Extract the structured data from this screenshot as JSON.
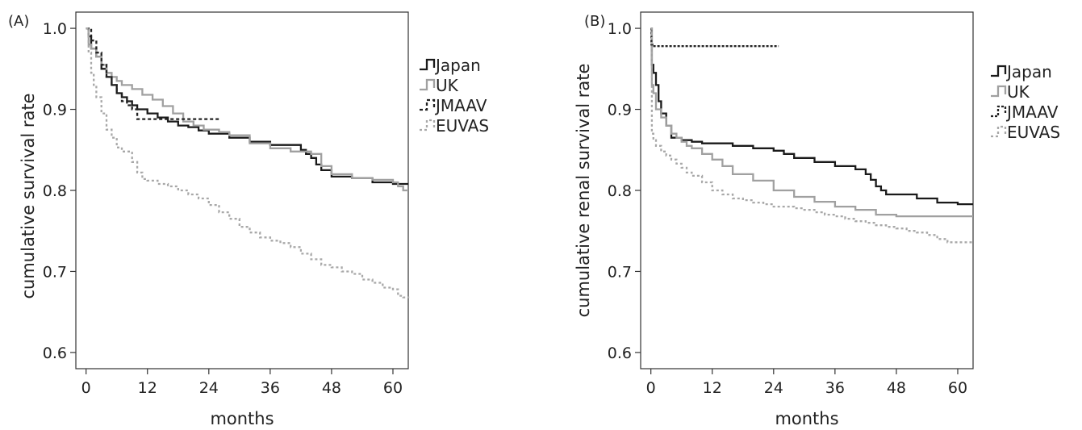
{
  "chart_data": [
    {
      "type": "line",
      "panel_label": "(A)",
      "xlabel": "months",
      "ylabel": "cumulative survival rate",
      "xlim": [
        -2,
        63
      ],
      "ylim": [
        0.58,
        1.02
      ],
      "xticks": [
        0,
        12,
        24,
        36,
        48,
        60
      ],
      "yticks": [
        0.6,
        0.7,
        0.8,
        0.9,
        1.0
      ],
      "ytick_labels": [
        "0.6",
        "0.7",
        "0.8",
        "0.9",
        "1.0"
      ],
      "grid": false,
      "legend_position": "right-outside-top",
      "series": [
        {
          "name": "Japan",
          "color": "#1a1a1a",
          "dash": "solid",
          "x": [
            0,
            0.5,
            1,
            2,
            3,
            4,
            5,
            6,
            7,
            8,
            9,
            10,
            12,
            14,
            16,
            18,
            20,
            22,
            24,
            28,
            32,
            36,
            40,
            42,
            43,
            44,
            45,
            46,
            48,
            52,
            56,
            60,
            63
          ],
          "y": [
            1.0,
            0.99,
            0.975,
            0.965,
            0.95,
            0.94,
            0.93,
            0.92,
            0.915,
            0.91,
            0.905,
            0.9,
            0.895,
            0.89,
            0.885,
            0.88,
            0.878,
            0.874,
            0.87,
            0.865,
            0.86,
            0.856,
            0.856,
            0.85,
            0.845,
            0.84,
            0.832,
            0.825,
            0.817,
            0.815,
            0.81,
            0.808,
            0.808
          ]
        },
        {
          "name": "UK",
          "color": "#a0a0a0",
          "dash": "solid",
          "x": [
            0,
            0.5,
            1,
            2,
            3,
            4,
            5,
            6,
            7,
            9,
            11,
            13,
            15,
            17,
            19,
            21,
            23,
            26,
            28,
            32,
            36,
            40,
            44,
            46,
            48,
            52,
            56,
            60,
            61,
            62,
            63
          ],
          "y": [
            1.0,
            0.98,
            0.975,
            0.965,
            0.955,
            0.945,
            0.94,
            0.935,
            0.93,
            0.925,
            0.918,
            0.912,
            0.904,
            0.895,
            0.885,
            0.88,
            0.875,
            0.872,
            0.868,
            0.858,
            0.852,
            0.848,
            0.845,
            0.83,
            0.82,
            0.815,
            0.813,
            0.81,
            0.805,
            0.8,
            0.8
          ]
        },
        {
          "name": "JMAAV",
          "color": "#222222",
          "dash": "4,3",
          "x": [
            0,
            1,
            2,
            3,
            4,
            5,
            6,
            7,
            8,
            9,
            10,
            12,
            16,
            20,
            24,
            26
          ],
          "y": [
            1.0,
            0.985,
            0.97,
            0.955,
            0.94,
            0.93,
            0.92,
            0.91,
            0.905,
            0.9,
            0.888,
            0.888,
            0.888,
            0.888,
            0.888,
            0.888
          ]
        },
        {
          "name": "EUVAS",
          "color": "#a8a8a8",
          "dash": "3,3",
          "x": [
            0,
            0.5,
            1,
            1.5,
            2,
            3,
            4,
            5,
            6,
            7,
            9,
            10,
            11,
            12,
            14,
            16,
            18,
            20,
            22,
            24,
            26,
            28,
            30,
            32,
            34,
            36,
            38,
            40,
            42,
            44,
            46,
            48,
            50,
            52,
            54,
            56,
            58,
            60,
            61,
            62,
            63
          ],
          "y": [
            1.0,
            0.97,
            0.945,
            0.93,
            0.915,
            0.895,
            0.875,
            0.865,
            0.853,
            0.848,
            0.835,
            0.822,
            0.814,
            0.812,
            0.808,
            0.805,
            0.8,
            0.795,
            0.79,
            0.782,
            0.773,
            0.765,
            0.755,
            0.748,
            0.742,
            0.738,
            0.735,
            0.73,
            0.722,
            0.715,
            0.708,
            0.705,
            0.7,
            0.697,
            0.69,
            0.686,
            0.68,
            0.678,
            0.67,
            0.668,
            0.667
          ]
        }
      ]
    },
    {
      "type": "line",
      "panel_label": "(B)",
      "xlabel": "months",
      "ylabel": "cumulative renal survival rate",
      "xlim": [
        -2,
        63
      ],
      "ylim": [
        0.58,
        1.02
      ],
      "xticks": [
        0,
        12,
        24,
        36,
        48,
        60
      ],
      "yticks": [
        0.6,
        0.7,
        0.8,
        0.9,
        1.0
      ],
      "ytick_labels": [
        "0.6",
        "0.7",
        "0.8",
        "0.9",
        "1.0"
      ],
      "grid": false,
      "legend_position": "right-outside-top",
      "series": [
        {
          "name": "Japan",
          "color": "#1a1a1a",
          "dash": "solid",
          "x": [
            0,
            0.2,
            0.5,
            1,
            1.5,
            2,
            3,
            4,
            6,
            8,
            10,
            12,
            16,
            20,
            24,
            26,
            28,
            32,
            36,
            40,
            42,
            43,
            44,
            45,
            46,
            48,
            52,
            56,
            60,
            63
          ],
          "y": [
            1.0,
            0.955,
            0.945,
            0.93,
            0.91,
            0.895,
            0.88,
            0.865,
            0.862,
            0.86,
            0.858,
            0.858,
            0.855,
            0.852,
            0.849,
            0.845,
            0.84,
            0.835,
            0.83,
            0.826,
            0.82,
            0.813,
            0.805,
            0.8,
            0.795,
            0.795,
            0.79,
            0.785,
            0.783,
            0.783
          ]
        },
        {
          "name": "UK",
          "color": "#a0a0a0",
          "dash": "solid",
          "x": [
            0,
            0.2,
            0.5,
            1,
            2,
            3,
            4,
            5,
            6,
            7,
            8,
            10,
            12,
            14,
            16,
            20,
            24,
            28,
            32,
            36,
            40,
            44,
            48,
            52,
            56,
            60,
            63
          ],
          "y": [
            1.0,
            0.93,
            0.92,
            0.9,
            0.89,
            0.88,
            0.87,
            0.865,
            0.86,
            0.855,
            0.852,
            0.845,
            0.838,
            0.83,
            0.82,
            0.812,
            0.8,
            0.792,
            0.786,
            0.78,
            0.776,
            0.77,
            0.768,
            0.768,
            0.768,
            0.768,
            0.768
          ]
        },
        {
          "name": "JMAAV",
          "color": "#222222",
          "dash": "3,2",
          "x": [
            0,
            0.1,
            0.3,
            5,
            10,
            15,
            20,
            25
          ],
          "y": [
            1.0,
            0.98,
            0.978,
            0.978,
            0.978,
            0.978,
            0.978,
            0.978
          ]
        },
        {
          "name": "EUVAS",
          "color": "#a8a8a8",
          "dash": "3,3",
          "x": [
            0,
            0.2,
            0.5,
            1,
            2,
            3,
            4,
            5,
            6,
            7,
            8,
            10,
            12,
            14,
            16,
            18,
            20,
            22,
            24,
            26,
            28,
            30,
            32,
            34,
            36,
            38,
            40,
            42,
            44,
            46,
            48,
            50,
            52,
            54,
            56,
            58,
            60,
            63
          ],
          "y": [
            1.0,
            0.87,
            0.862,
            0.855,
            0.848,
            0.843,
            0.838,
            0.833,
            0.828,
            0.822,
            0.818,
            0.81,
            0.8,
            0.795,
            0.79,
            0.788,
            0.785,
            0.783,
            0.78,
            0.78,
            0.778,
            0.776,
            0.773,
            0.77,
            0.768,
            0.765,
            0.762,
            0.76,
            0.757,
            0.755,
            0.753,
            0.75,
            0.748,
            0.745,
            0.74,
            0.736,
            0.736,
            0.736
          ]
        }
      ]
    }
  ]
}
